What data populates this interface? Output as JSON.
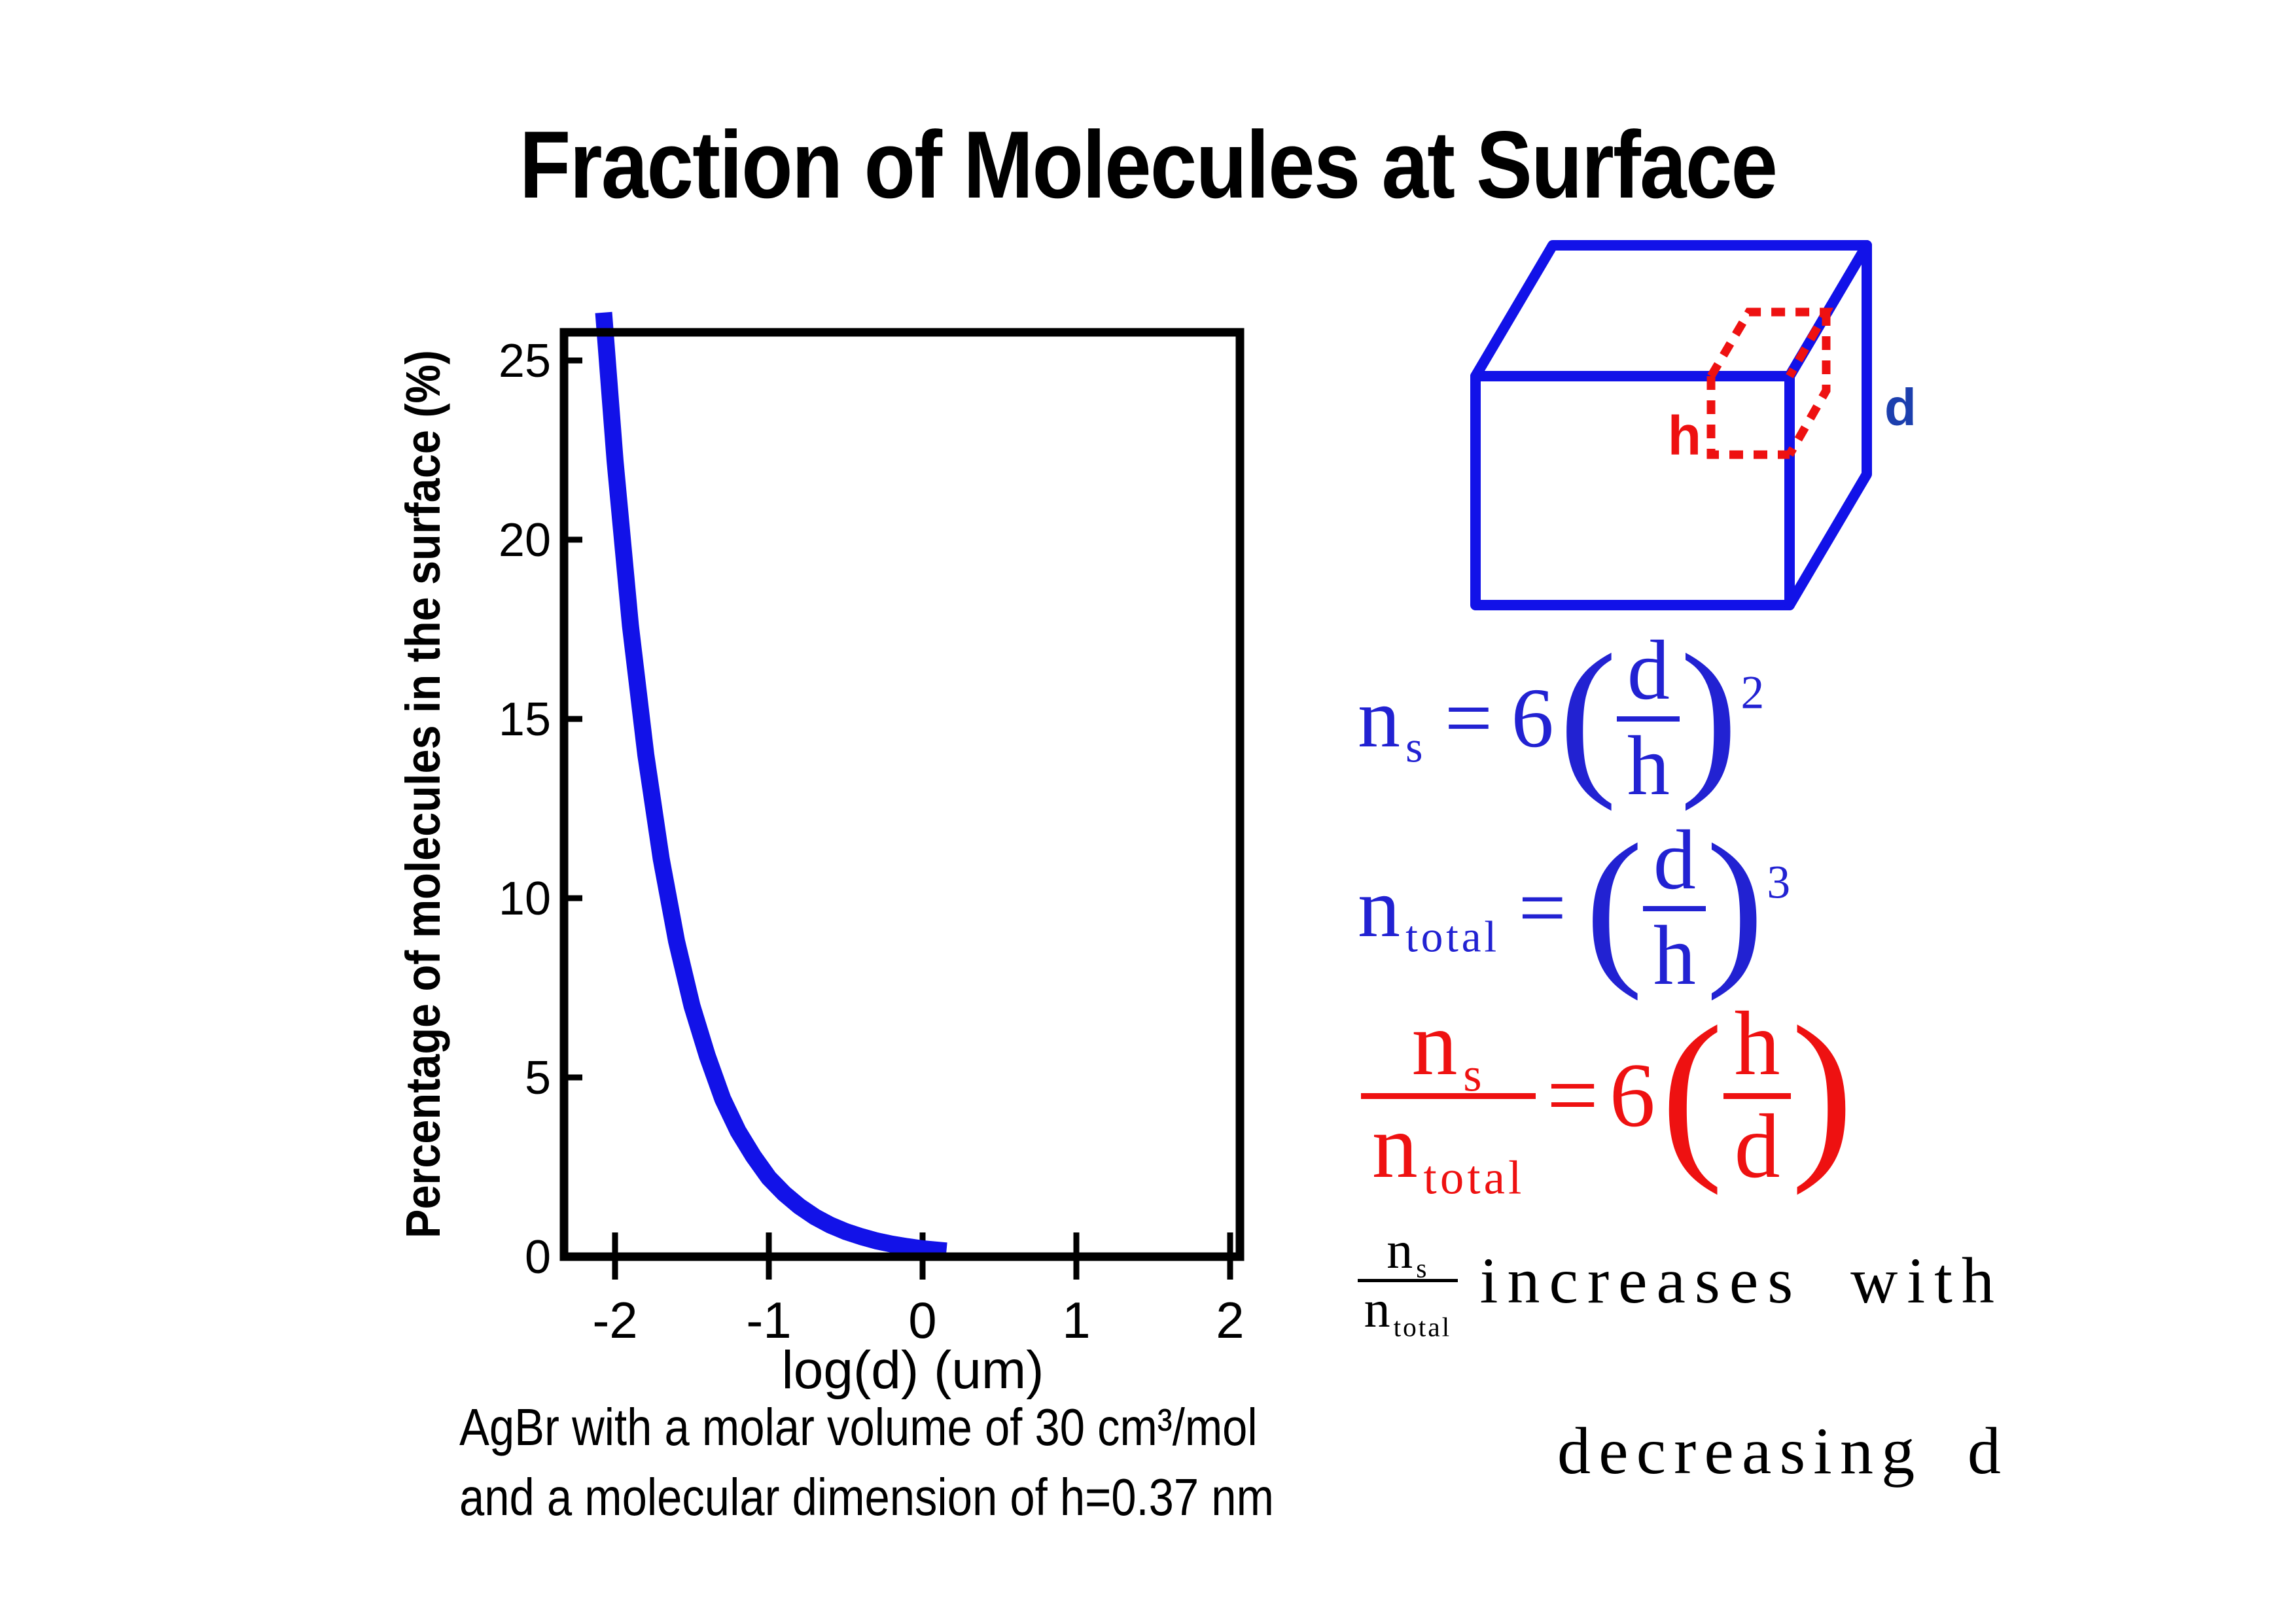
{
  "title": "Fraction of Molecules at Surface",
  "colors": {
    "line_blue": "#1212e8",
    "formula_blue": "#2222d2",
    "red": "#ee1111",
    "d_label_blue": "#1c3fae"
  },
  "chart_data": {
    "type": "line",
    "title": "",
    "xlabel": "log(d) (um)",
    "ylabel": "Percentage of molecules in the surface (%)",
    "xlim": [
      -2.33,
      2.06
    ],
    "ylim": [
      0,
      25.8
    ],
    "x_ticks": [
      -2,
      -1,
      0,
      1,
      2
    ],
    "y_ticks": [
      0,
      5,
      10,
      15,
      20,
      25
    ],
    "grid": false,
    "legend": false,
    "series": [
      {
        "name": "percentage of molecules in the surface",
        "color": "#1212e8",
        "x": [
          -2.07,
          -2.0,
          -1.9,
          -1.8,
          -1.7,
          -1.6,
          -1.5,
          -1.4,
          -1.3,
          -1.2,
          -1.1,
          -1.0,
          -0.9,
          -0.8,
          -0.7,
          -0.6,
          -0.5,
          -0.4,
          -0.3,
          -0.2,
          -0.1,
          0.0,
          0.1
        ],
        "y": [
          26.1,
          22.2,
          17.6,
          14.0,
          11.1,
          8.8,
          7.0,
          5.6,
          4.4,
          3.5,
          2.8,
          2.2,
          1.76,
          1.4,
          1.11,
          0.88,
          0.7,
          0.56,
          0.44,
          0.35,
          0.28,
          0.22,
          0.18
        ]
      }
    ]
  },
  "caption": {
    "line1": "AgBr with a molar volume of 30 cm³/mol",
    "line2": "and a molecular dimension of h=0.37 nm"
  },
  "cube": {
    "h_label": "h",
    "d_label": "d"
  },
  "formulas": {
    "f1": {
      "base": "n",
      "sub": "s",
      "eq": "=",
      "coef": "6",
      "lparen": "(",
      "num": "d",
      "den": "h",
      "rparen": ")",
      "exp": "2"
    },
    "f2": {
      "base": "n",
      "sub": "total",
      "eq": "=",
      "lparen": "(",
      "num": "d",
      "den": "h",
      "rparen": ")",
      "exp": "3"
    },
    "f3": {
      "num_base": "n",
      "num_sub": "s",
      "den_base": "n",
      "den_sub": "total",
      "eq": "=",
      "coef": "6",
      "lparen": "(",
      "num": "h",
      "den": "d",
      "rparen": ")"
    },
    "conclusion": {
      "num_base": "n",
      "num_sub": "s",
      "den_base": "n",
      "den_sub": "total",
      "line1": "increases with",
      "line2": "decreasing d"
    }
  }
}
